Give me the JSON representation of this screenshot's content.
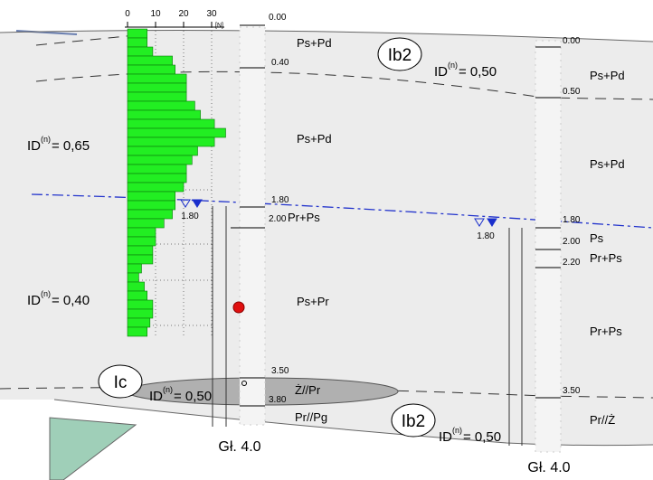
{
  "probe": {
    "axis_ticks": [
      0,
      10,
      20,
      30
    ],
    "unit": "[N]",
    "values": [
      7,
      7,
      9,
      16,
      17,
      21,
      21,
      21,
      24,
      26,
      31,
      35,
      31,
      25,
      23,
      21,
      21,
      20,
      17,
      17,
      16,
      13,
      10,
      10,
      9,
      9,
      5,
      4,
      6,
      7,
      9,
      9,
      8,
      7
    ]
  },
  "boreholes": [
    {
      "name": "Gł. 4.0",
      "depths": [
        "0.00",
        "0.40",
        "1.80",
        "2.00",
        "3.50",
        "3.80"
      ],
      "layers": [
        "Ps+Pd",
        "Ps+Pd",
        "Pr+Ps",
        "Ps+Pr",
        "Ż//Pr",
        "Pr//Pg"
      ],
      "water": "1.80"
    },
    {
      "name": "Gł. 4.0",
      "depths": [
        "0.00",
        "0.50",
        "1.80",
        "2.00",
        "2.20",
        "3.50"
      ],
      "layers": [
        "Ps+Pd",
        "Ps+Pd",
        "Ps",
        "Pr+Ps",
        "Pr+Ps",
        "Pr//Ż"
      ],
      "water": "1.80"
    }
  ],
  "zones": [
    "Ib2",
    "Ic",
    "Ib2"
  ],
  "density": [
    {
      "symbol": "ID",
      "index": "(n)",
      "value": "= 0,65"
    },
    {
      "symbol": "ID",
      "index": "(n)",
      "value": "= 0,40"
    },
    {
      "symbol": "ID",
      "index": "(n)",
      "value": "= 0,50"
    },
    {
      "symbol": "ID",
      "index": "(n)",
      "value": "= 0,50"
    },
    {
      "symbol": "ID",
      "index": "(n)",
      "value": "= 0,50"
    }
  ]
}
